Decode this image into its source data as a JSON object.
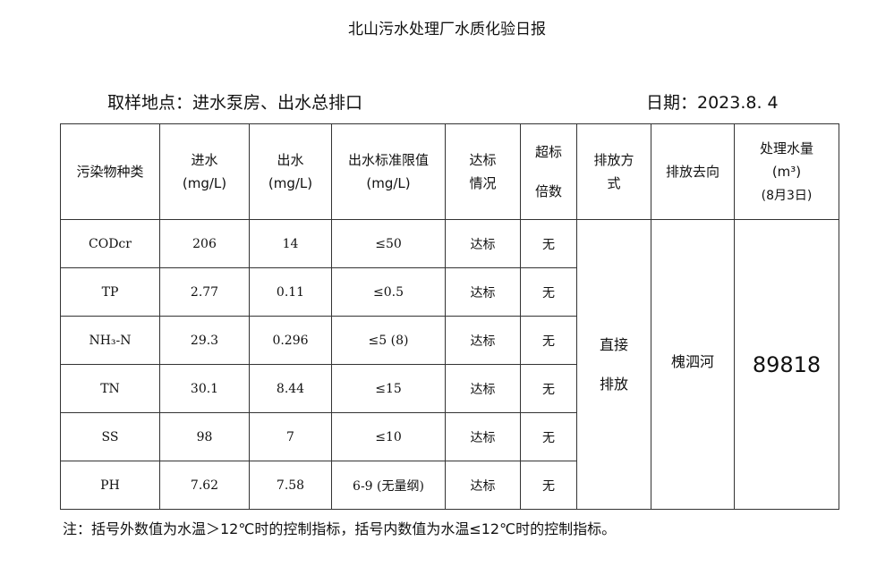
{
  "title": "北山污水处理厂水质化验日报",
  "location": "取样地点：进水泵房、出水总排口",
  "date": "日期：2023.8. 4",
  "headers": {
    "c0": "污染物种类",
    "c1a": "进水",
    "c1b": "(mg/L)",
    "c2a": "出水",
    "c2b": "(mg/L)",
    "c3a": "出水标准限值",
    "c3b": "(mg/L)",
    "c4a": "达标",
    "c4b": "情况",
    "c5a": "超标",
    "c5b": "倍数",
    "c6a": "排放方",
    "c6b": "式",
    "c7": "排放去向",
    "c8a": "处理水量",
    "c8b": "(m³)",
    "c8c": "(8月3日)"
  },
  "rows": [
    {
      "name": "CODcr",
      "in": "206",
      "out": "14",
      "limit": "≤50",
      "status": "达标",
      "exceed": "无"
    },
    {
      "name": "TP",
      "in": "2.77",
      "out": "0.11",
      "limit": "≤0.5",
      "status": "达标",
      "exceed": "无"
    },
    {
      "name": "NH₃-N",
      "in": "29.3",
      "out": "0.296",
      "limit": "≤5 (8)",
      "status": "达标",
      "exceed": "无"
    },
    {
      "name": "TN",
      "in": "30.1",
      "out": "8.44",
      "limit": "≤15",
      "status": "达标",
      "exceed": "无"
    },
    {
      "name": "SS",
      "in": "98",
      "out": "7",
      "limit": "≤10",
      "status": "达标",
      "exceed": "无"
    },
    {
      "name": "PH",
      "in": "7.62",
      "out": "7.58",
      "limit": "6-9 (无量纲)",
      "status": "达标",
      "exceed": "无"
    }
  ],
  "discharge_method_a": "直接",
  "discharge_method_b": "排放",
  "discharge_dest": "槐泗河",
  "volume": "89818",
  "note": "注：括号外数值为水温＞12℃时的控制指标，括号内数值为水温≤12℃时的控制指标。"
}
